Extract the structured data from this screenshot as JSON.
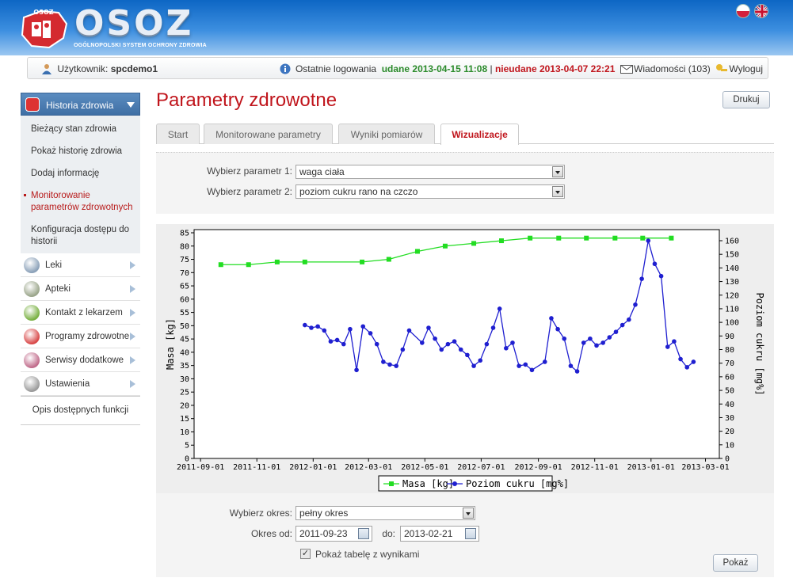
{
  "header": {
    "logo_small": "OSOZ",
    "logo_big": "OSOZ",
    "logo_subtitle": "OGÓLNOPOLSKI SYSTEM OCHRONY ZDROWIA"
  },
  "userbar": {
    "user_label": "Użytkownik:",
    "username": "spcdemo1",
    "last_login_label": "Ostatnie logowania",
    "success_text": "udane 2013-04-15 11:08",
    "separator": "|",
    "fail_text": "nieudane 2013-04-07 22:21",
    "messages": "Wiadomości (103)",
    "logout": "Wyloguj"
  },
  "sidebar": {
    "active": "Historia zdrowia",
    "subitems": [
      "Bieżący stan zdrowia",
      "Pokaż historię zdrowia",
      "Dodaj informację",
      "Monitorowanie parametrów zdrowotnych",
      "Konfiguracja dostępu do historii"
    ],
    "items": [
      {
        "label": "Leki",
        "icon": "pills-icon",
        "color": "#8aa0b8"
      },
      {
        "label": "Apteki",
        "icon": "caduceus-icon",
        "color": "#9aa58a"
      },
      {
        "label": "Kontakt z lekarzem",
        "icon": "doctor-icon",
        "color": "#78b040"
      },
      {
        "label": "Programy zdrowotne",
        "icon": "shield-icon",
        "color": "#d84646"
      },
      {
        "label": "Serwisy dodatkowe",
        "icon": "services-icon",
        "color": "#c06a8a"
      },
      {
        "label": "Ustawienia",
        "icon": "gear-icon",
        "color": "#9a9a9a"
      }
    ],
    "help": "Opis dostępnych funkcji"
  },
  "page": {
    "title": "Parametry zdrowotne",
    "print": "Drukuj"
  },
  "tabs": [
    "Start",
    "Monitorowane parametry",
    "Wyniki pomiarów",
    "Wizualizacje"
  ],
  "form": {
    "param1_label": "Wybierz parametr 1:",
    "param1_value": "waga ciała",
    "param2_label": "Wybierz parametr 2:",
    "param2_value": "poziom cukru rano na czczo"
  },
  "lower": {
    "period_label": "Wybierz okres:",
    "period_value": "pełny okres",
    "from_label": "Okres od:",
    "from_value": "2011-09-23",
    "to_label": "do:",
    "to_value": "2013-02-21",
    "table_checkbox": "Pokaż tabelę z wynikami",
    "show_button": "Pokaż"
  },
  "chart_data": {
    "type": "line",
    "left_ylabel": "Masa [kg]",
    "right_ylabel": "Poziom cukru [mg%]",
    "left_ylim": [
      0,
      85
    ],
    "right_ylim": [
      0,
      160
    ],
    "left_ticks": [
      0,
      5,
      10,
      15,
      20,
      25,
      30,
      35,
      40,
      45,
      50,
      55,
      60,
      65,
      70,
      75,
      80,
      85
    ],
    "right_ticks": [
      0,
      10,
      20,
      30,
      40,
      50,
      60,
      70,
      80,
      90,
      100,
      110,
      120,
      130,
      140,
      150,
      160
    ],
    "x_ticks": [
      "2011-09-01",
      "2011-11-01",
      "2012-01-01",
      "2012-03-01",
      "2012-05-01",
      "2012-07-01",
      "2012-09-01",
      "2012-11-01",
      "2013-01-01",
      "2013-03-01"
    ],
    "grid": false,
    "legend_position": "bottom",
    "series": [
      {
        "name": "Masa [kg]",
        "axis": "left",
        "color": "#22dd22",
        "marker": "square",
        "points": [
          [
            "2011-09-23",
            73
          ],
          [
            "2011-10-23",
            73
          ],
          [
            "2011-11-23",
            74
          ],
          [
            "2011-12-23",
            74
          ],
          [
            "2012-02-23",
            74
          ],
          [
            "2012-03-23",
            75
          ],
          [
            "2012-04-23",
            78
          ],
          [
            "2012-05-23",
            80
          ],
          [
            "2012-06-23",
            81
          ],
          [
            "2012-07-23",
            82
          ],
          [
            "2012-08-23",
            83
          ],
          [
            "2012-09-23",
            83
          ],
          [
            "2012-10-23",
            83
          ],
          [
            "2012-11-23",
            83
          ],
          [
            "2012-12-23",
            83
          ],
          [
            "2013-01-23",
            83
          ]
        ]
      },
      {
        "name": "Poziom cukru [mg%]",
        "axis": "right",
        "color": "#1f1fd0",
        "marker": "circle",
        "points": [
          [
            "2011-12-23",
            98
          ],
          [
            "2011-12-30",
            96
          ],
          [
            "2012-01-06",
            97
          ],
          [
            "2012-01-13",
            94
          ],
          [
            "2012-01-20",
            86
          ],
          [
            "2012-01-27",
            87
          ],
          [
            "2012-02-03",
            84
          ],
          [
            "2012-02-10",
            95
          ],
          [
            "2012-02-17",
            65
          ],
          [
            "2012-02-24",
            97
          ],
          [
            "2012-03-03",
            92
          ],
          [
            "2012-03-10",
            84
          ],
          [
            "2012-03-17",
            71
          ],
          [
            "2012-03-24",
            69
          ],
          [
            "2012-03-31",
            68
          ],
          [
            "2012-04-07",
            80
          ],
          [
            "2012-04-14",
            94
          ],
          [
            "2012-04-28",
            85
          ],
          [
            "2012-05-05",
            96
          ],
          [
            "2012-05-12",
            88
          ],
          [
            "2012-05-19",
            80
          ],
          [
            "2012-05-26",
            84
          ],
          [
            "2012-06-02",
            86
          ],
          [
            "2012-06-09",
            80
          ],
          [
            "2012-06-16",
            76
          ],
          [
            "2012-06-23",
            68
          ],
          [
            "2012-06-30",
            72
          ],
          [
            "2012-07-07",
            84
          ],
          [
            "2012-07-14",
            96
          ],
          [
            "2012-07-21",
            110
          ],
          [
            "2012-07-28",
            81
          ],
          [
            "2012-08-04",
            85
          ],
          [
            "2012-08-11",
            68
          ],
          [
            "2012-08-18",
            69
          ],
          [
            "2012-08-25",
            65
          ],
          [
            "2012-09-08",
            71
          ],
          [
            "2012-09-15",
            103
          ],
          [
            "2012-09-22",
            95
          ],
          [
            "2012-09-29",
            88
          ],
          [
            "2012-10-06",
            68
          ],
          [
            "2012-10-13",
            64
          ],
          [
            "2012-10-20",
            85
          ],
          [
            "2012-10-27",
            88
          ],
          [
            "2012-11-03",
            83
          ],
          [
            "2012-11-10",
            85
          ],
          [
            "2012-11-17",
            89
          ],
          [
            "2012-11-24",
            93
          ],
          [
            "2012-12-01",
            98
          ],
          [
            "2012-12-08",
            102
          ],
          [
            "2012-12-15",
            113
          ],
          [
            "2012-12-22",
            132
          ],
          [
            "2012-12-29",
            160
          ],
          [
            "2013-01-05",
            143
          ],
          [
            "2013-01-12",
            134
          ],
          [
            "2013-01-19",
            82
          ],
          [
            "2013-01-26",
            86
          ],
          [
            "2013-02-02",
            73
          ],
          [
            "2013-02-09",
            67
          ],
          [
            "2013-02-16",
            71
          ]
        ]
      }
    ]
  }
}
